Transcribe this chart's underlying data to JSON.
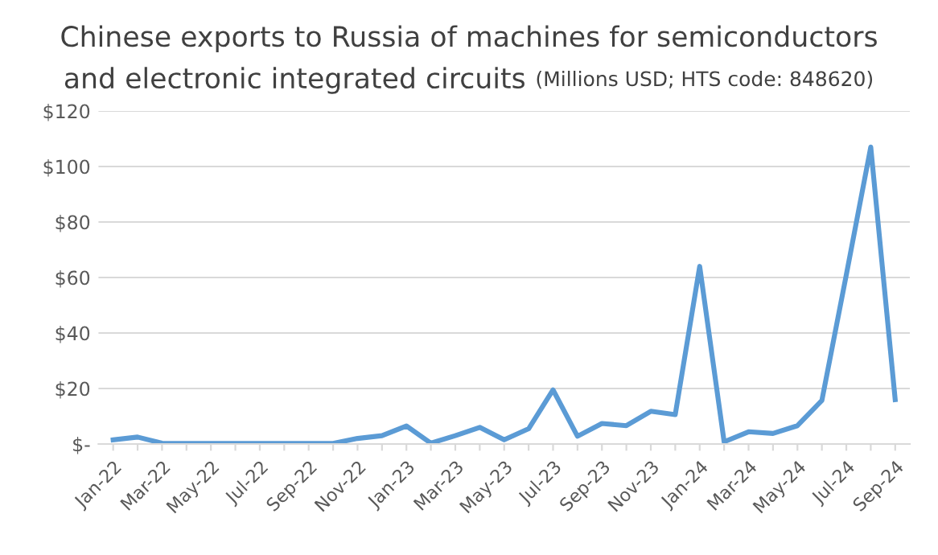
{
  "chart_data": {
    "type": "line",
    "title": "Chinese exports to Russia of machines for semiconductors\nand electronic integrated circuits",
    "subtitle": "(Millions USD; HTS code: 848620)",
    "categories": [
      "Jan-22",
      null,
      "Mar-22",
      null,
      "May-22",
      null,
      "Jul-22",
      null,
      "Sep-22",
      null,
      "Nov-22",
      null,
      "Jan-23",
      null,
      "Mar-23",
      null,
      "May-23",
      null,
      "Jul-23",
      null,
      "Sep-23",
      null,
      "Nov-23",
      null,
      "Jan-24",
      null,
      "Mar-24",
      null,
      "May-24",
      null,
      "Jul-24",
      null,
      "Sep-24"
    ],
    "series": [
      {
        "color": "#5b9bd5",
        "values": [
          1.5,
          2.5,
          0.3,
          0.2,
          0.2,
          0.2,
          0.2,
          0.2,
          0.2,
          0.2,
          2,
          3,
          6.5,
          0.3,
          3,
          6,
          1.5,
          5.5,
          19.5,
          2.8,
          7.4,
          6.6,
          11.8,
          10.6,
          64,
          0.8,
          4.4,
          3.8,
          6.6,
          15.7,
          61,
          107,
          16
        ]
      }
    ],
    "ylim": [
      0,
      120
    ],
    "yticks": [
      {
        "value": 0,
        "label": "$-"
      },
      {
        "value": 20,
        "label": "$20"
      },
      {
        "value": 40,
        "label": "$40"
      },
      {
        "value": 60,
        "label": "$60"
      },
      {
        "value": 80,
        "label": "$80"
      },
      {
        "value": 100,
        "label": "$100"
      },
      {
        "value": 120,
        "label": "$120"
      }
    ],
    "grid": "y",
    "legend": false,
    "marker": "none",
    "line_style": "solid"
  }
}
